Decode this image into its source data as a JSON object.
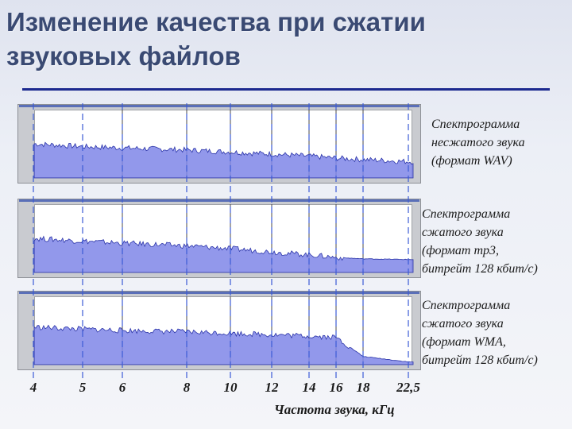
{
  "slide": {
    "title": "Изменение качества при сжатии звуковых файлов"
  },
  "colors": {
    "spectrum_fill": "#7f86e8",
    "spectrum_line": "#2a33a8",
    "guide_line": "#3b5bd6",
    "title": "#3a4a73"
  },
  "chart_data": {
    "type": "area",
    "xlabel": "Частота звука, кГц",
    "x_ticks": [
      "4",
      "5",
      "6",
      "8",
      "10",
      "12",
      "14",
      "16",
      "18",
      "22,5"
    ],
    "x_tick_values": [
      4,
      5,
      6,
      8,
      10,
      12,
      14,
      16,
      18,
      22.5
    ],
    "panels": [
      {
        "label": "Спектрограмма\nнесжатого звука\n(формат WAV)",
        "x": [
          4,
          5,
          6,
          8,
          10,
          12,
          14,
          16,
          18,
          22.5
        ],
        "level": [
          0.5,
          0.46,
          0.44,
          0.41,
          0.38,
          0.35,
          0.32,
          0.29,
          0.27,
          0.24
        ],
        "cutoff_khz": null
      },
      {
        "label": "Спектрограмма\nсжатого звука\n(формат mp3,\nбитрейт 128 кбит/с)",
        "x": [
          4,
          5,
          6,
          8,
          10,
          12,
          14,
          16,
          18,
          22.5
        ],
        "level": [
          0.5,
          0.46,
          0.43,
          0.39,
          0.35,
          0.3,
          0.26,
          0.22,
          0.2,
          0.19
        ],
        "cutoff_khz": 16
      },
      {
        "label": "Спектрограмма\nсжатого звука\n(формат WMA,\nбитрейт 128 кбит/с)",
        "x": [
          4,
          5,
          6,
          8,
          10,
          12,
          14,
          16,
          18,
          22.5
        ],
        "level": [
          0.55,
          0.52,
          0.5,
          0.48,
          0.46,
          0.44,
          0.42,
          0.4,
          0.12,
          0.04
        ],
        "cutoff_khz": 16.5
      }
    ]
  }
}
